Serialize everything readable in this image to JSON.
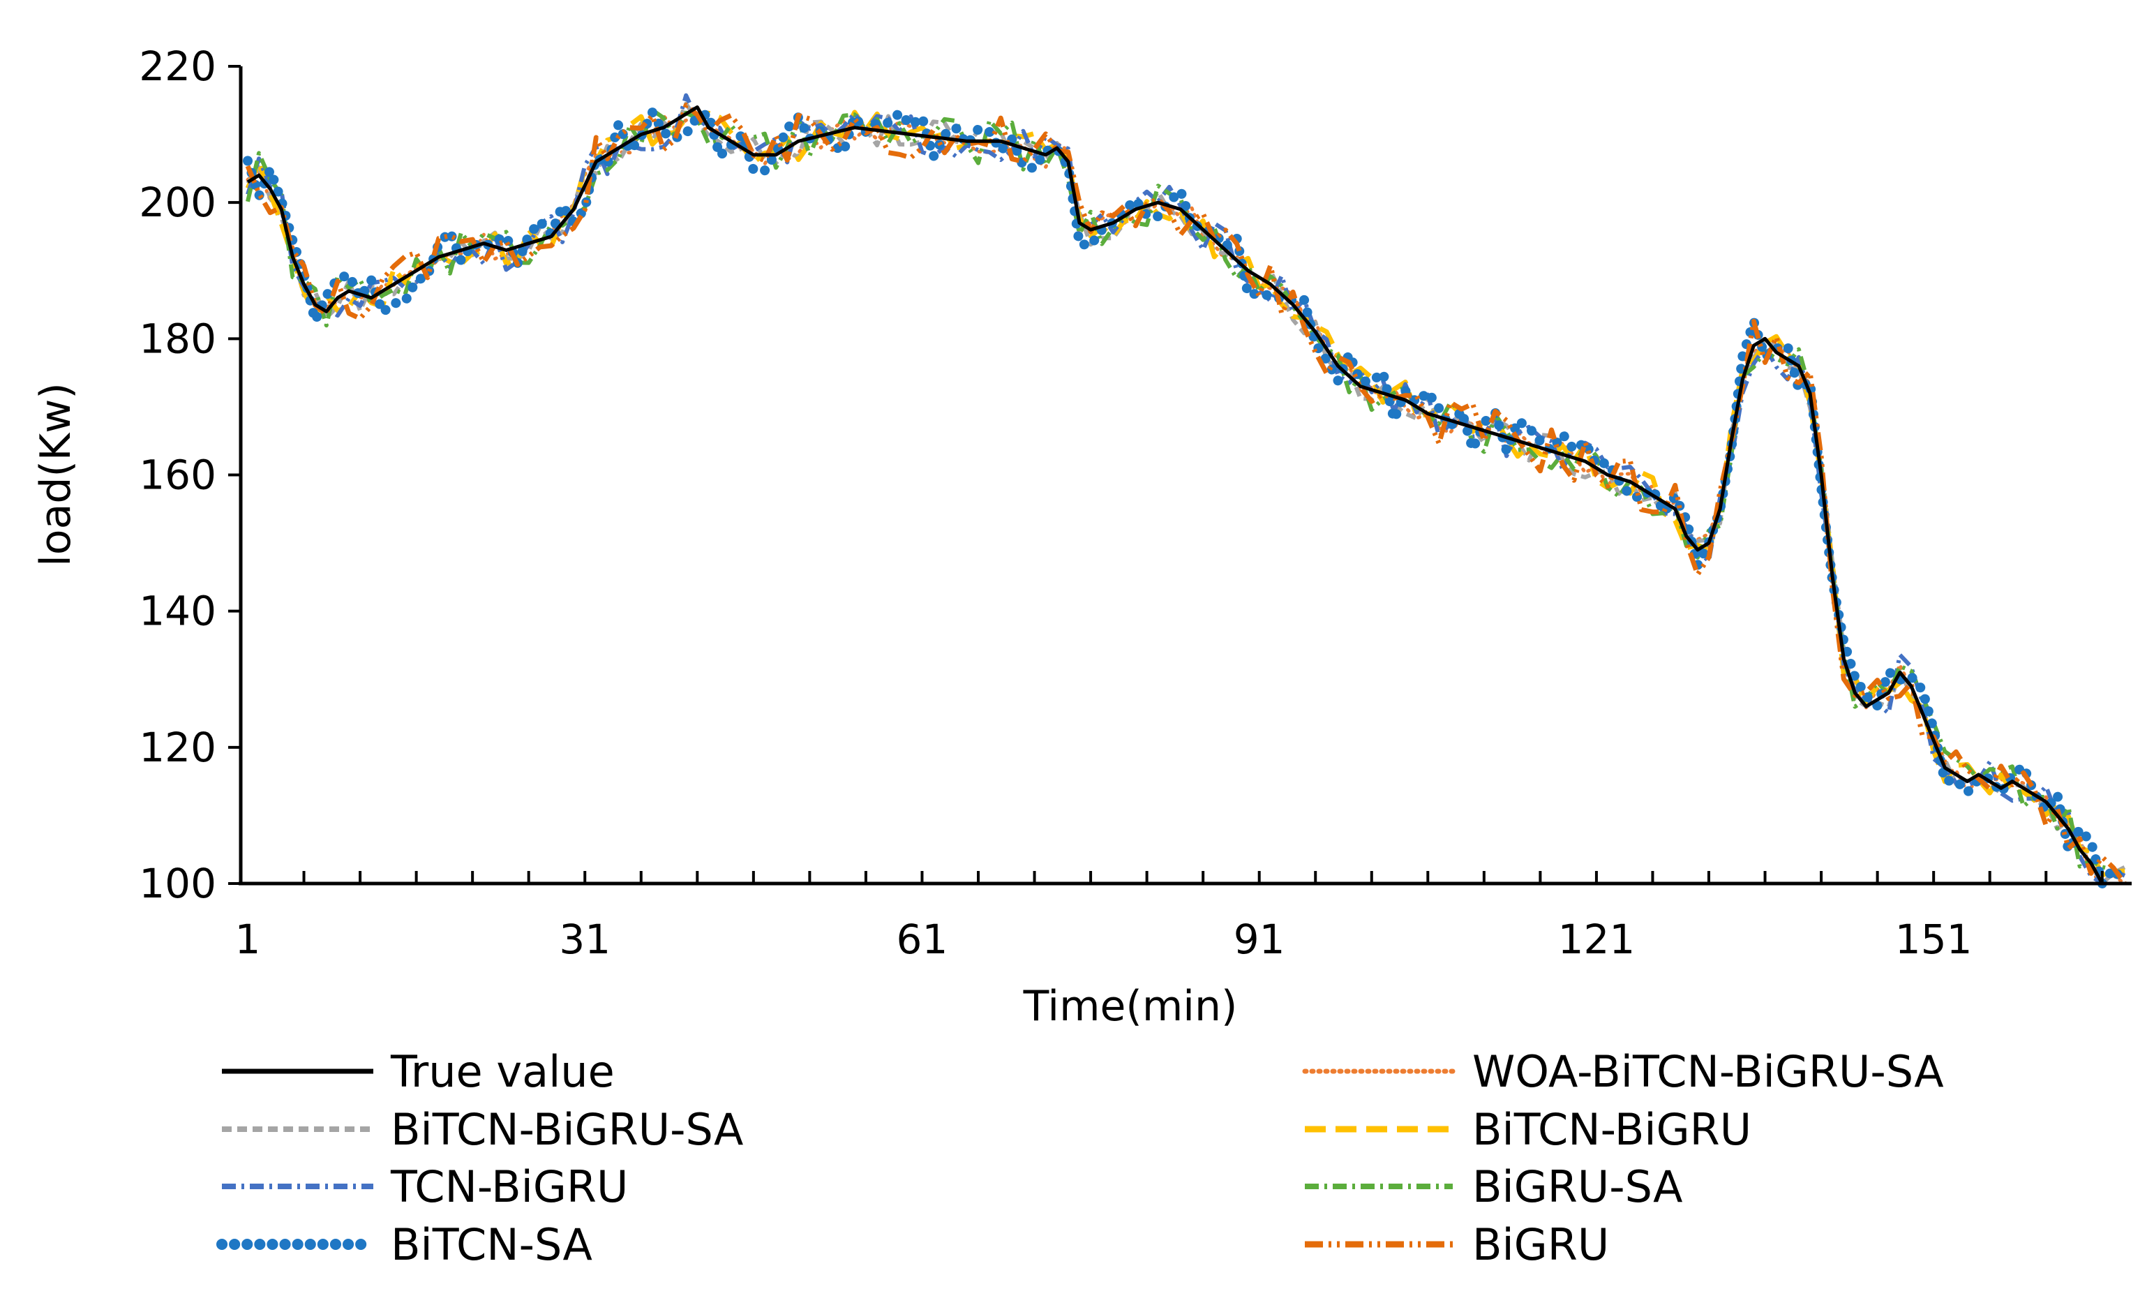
{
  "chart_data": {
    "type": "line",
    "title": "",
    "xlabel": "Time(min)",
    "ylabel": "load(Kw)",
    "xlim": [
      1,
      168
    ],
    "ylim": [
      100,
      220
    ],
    "x_ticks": [
      "1",
      "31",
      "61",
      "91",
      "121",
      "151"
    ],
    "y_ticks": [
      "100",
      "120",
      "140",
      "160",
      "180",
      "200",
      "220"
    ],
    "grid": false,
    "legend_position": "bottom",
    "true_value_keypoints": [
      [
        1,
        203
      ],
      [
        2,
        204
      ],
      [
        3,
        202
      ],
      [
        4,
        199
      ],
      [
        5,
        192
      ],
      [
        6,
        188
      ],
      [
        7,
        185
      ],
      [
        8,
        184
      ],
      [
        9,
        186
      ],
      [
        10,
        187
      ],
      [
        12,
        186
      ],
      [
        14,
        188
      ],
      [
        16,
        190
      ],
      [
        18,
        192
      ],
      [
        20,
        193
      ],
      [
        22,
        194
      ],
      [
        24,
        193
      ],
      [
        26,
        194
      ],
      [
        28,
        195
      ],
      [
        30,
        199
      ],
      [
        32,
        206
      ],
      [
        34,
        208
      ],
      [
        36,
        210
      ],
      [
        38,
        211
      ],
      [
        40,
        213
      ],
      [
        41,
        214
      ],
      [
        42,
        211
      ],
      [
        44,
        209
      ],
      [
        46,
        207
      ],
      [
        48,
        207
      ],
      [
        50,
        209
      ],
      [
        55,
        211
      ],
      [
        60,
        210
      ],
      [
        65,
        209
      ],
      [
        68,
        209
      ],
      [
        70,
        208
      ],
      [
        72,
        207
      ],
      [
        73,
        208
      ],
      [
        74,
        206
      ],
      [
        75,
        197
      ],
      [
        76,
        196
      ],
      [
        78,
        197
      ],
      [
        80,
        199
      ],
      [
        82,
        200
      ],
      [
        84,
        199
      ],
      [
        86,
        196
      ],
      [
        88,
        193
      ],
      [
        90,
        190
      ],
      [
        92,
        188
      ],
      [
        94,
        185
      ],
      [
        96,
        181
      ],
      [
        98,
        176
      ],
      [
        100,
        173
      ],
      [
        102,
        172
      ],
      [
        104,
        171
      ],
      [
        106,
        169
      ],
      [
        108,
        168
      ],
      [
        110,
        167
      ],
      [
        112,
        166
      ],
      [
        114,
        165
      ],
      [
        116,
        164
      ],
      [
        118,
        163
      ],
      [
        120,
        162
      ],
      [
        122,
        160
      ],
      [
        124,
        159
      ],
      [
        126,
        157
      ],
      [
        128,
        155
      ],
      [
        129,
        151
      ],
      [
        130,
        149
      ],
      [
        131,
        150
      ],
      [
        132,
        155
      ],
      [
        133,
        165
      ],
      [
        134,
        174
      ],
      [
        135,
        179
      ],
      [
        136,
        180
      ],
      [
        137,
        178
      ],
      [
        138,
        177
      ],
      [
        139,
        176
      ],
      [
        140,
        172
      ],
      [
        141,
        160
      ],
      [
        142,
        145
      ],
      [
        143,
        133
      ],
      [
        144,
        128
      ],
      [
        145,
        126
      ],
      [
        146,
        127
      ],
      [
        147,
        128
      ],
      [
        148,
        131
      ],
      [
        149,
        129
      ],
      [
        150,
        125
      ],
      [
        151,
        121
      ],
      [
        152,
        117
      ],
      [
        153,
        116
      ],
      [
        154,
        115
      ],
      [
        155,
        116
      ],
      [
        156,
        115
      ],
      [
        157,
        114
      ],
      [
        158,
        115
      ],
      [
        159,
        114
      ],
      [
        160,
        113
      ],
      [
        161,
        112
      ],
      [
        162,
        110
      ],
      [
        163,
        108
      ],
      [
        164,
        105
      ],
      [
        165,
        103
      ],
      [
        166,
        100
      ],
      [
        167,
        100
      ],
      [
        168,
        100
      ]
    ],
    "series": [
      {
        "name": "True value",
        "color": "#000000",
        "dash": "solid",
        "noise": 0
      },
      {
        "name": "WOA-BiTCN-BiGRU-SA",
        "color": "#ED7D31",
        "dash": "dotted",
        "noise": 1.2
      },
      {
        "name": "BiTCN-BiGRU-SA",
        "color": "#A5A5A5",
        "dash": "dashed",
        "noise": 1.6
      },
      {
        "name": "BiTCN-BiGRU",
        "color": "#FFC000",
        "dash": "long-dash",
        "noise": 1.8
      },
      {
        "name": "TCN-BiGRU",
        "color": "#4472C4",
        "dash": "dash-dot",
        "noise": 2.0
      },
      {
        "name": "BiGRU-SA",
        "color": "#5BAD3C",
        "dash": "dash-dot",
        "noise": 2.2
      },
      {
        "name": "BiTCN-SA",
        "color": "#1F77C4",
        "dash": "round-dots",
        "noise": 2.4
      },
      {
        "name": "BiGRU",
        "color": "#E46C0A",
        "dash": "long-dash-dot-dot",
        "noise": 2.6
      }
    ]
  },
  "legend": {
    "left": [
      "True value",
      "BiTCN-BiGRU-SA",
      "TCN-BiGRU",
      "BiTCN-SA"
    ],
    "right": [
      "WOA-BiTCN-BiGRU-SA",
      "BiTCN-BiGRU",
      "BiGRU-SA",
      "BiGRU"
    ]
  }
}
